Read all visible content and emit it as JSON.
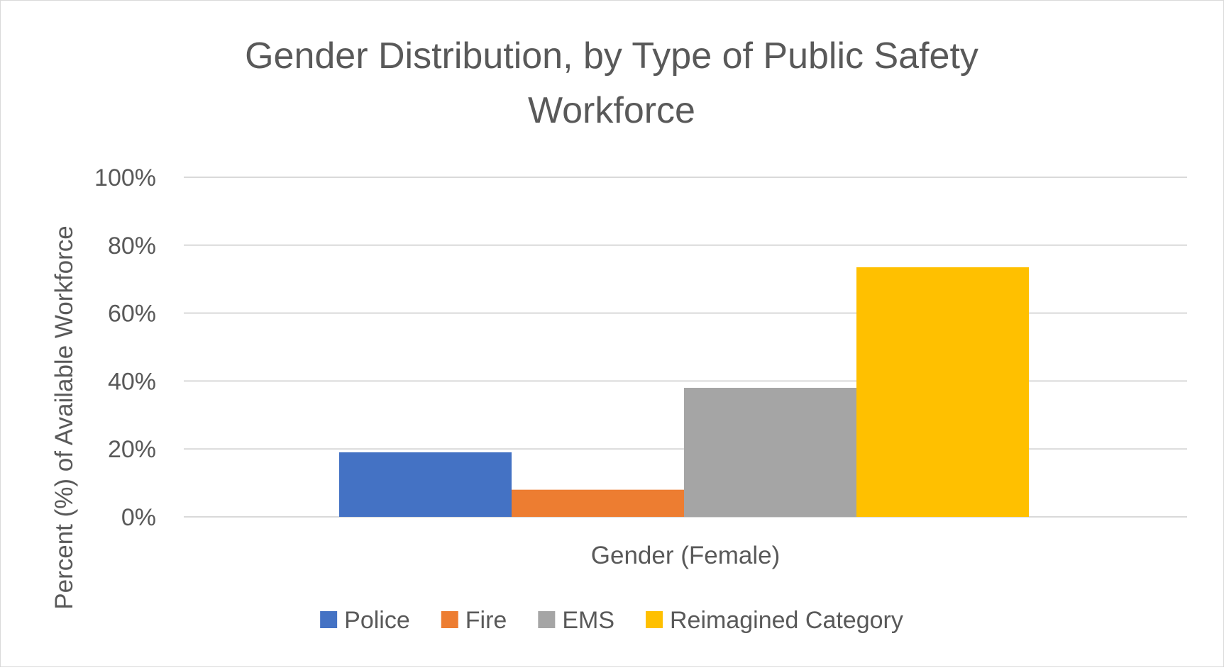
{
  "chart_data": {
    "type": "bar",
    "title_lines": [
      "Gender Distribution, by Type of Public Safety",
      "Workforce"
    ],
    "ylabel": "Percent (%) of Available Workforce",
    "xlabel": "",
    "categories": [
      "Gender (Female)"
    ],
    "series": [
      {
        "name": "Police",
        "values": [
          0.19
        ],
        "color": "#4472c4"
      },
      {
        "name": "Fire",
        "values": [
          0.08
        ],
        "color": "#ed7d31"
      },
      {
        "name": "EMS",
        "values": [
          0.38
        ],
        "color": "#a5a5a5"
      },
      {
        "name": "Reimagined Category",
        "values": [
          0.735
        ],
        "color": "#ffc000"
      }
    ],
    "ylim": [
      0,
      1
    ],
    "yticks": [
      0,
      0.2,
      0.4,
      0.6,
      0.8,
      1.0
    ],
    "ytick_labels": [
      "0%",
      "20%",
      "40%",
      "60%",
      "80%",
      "100%"
    ],
    "grid": true,
    "legend_position": "bottom",
    "colors": {
      "grid": "#d9d9d9",
      "text": "#595959",
      "border": "#d9d9d9"
    }
  }
}
